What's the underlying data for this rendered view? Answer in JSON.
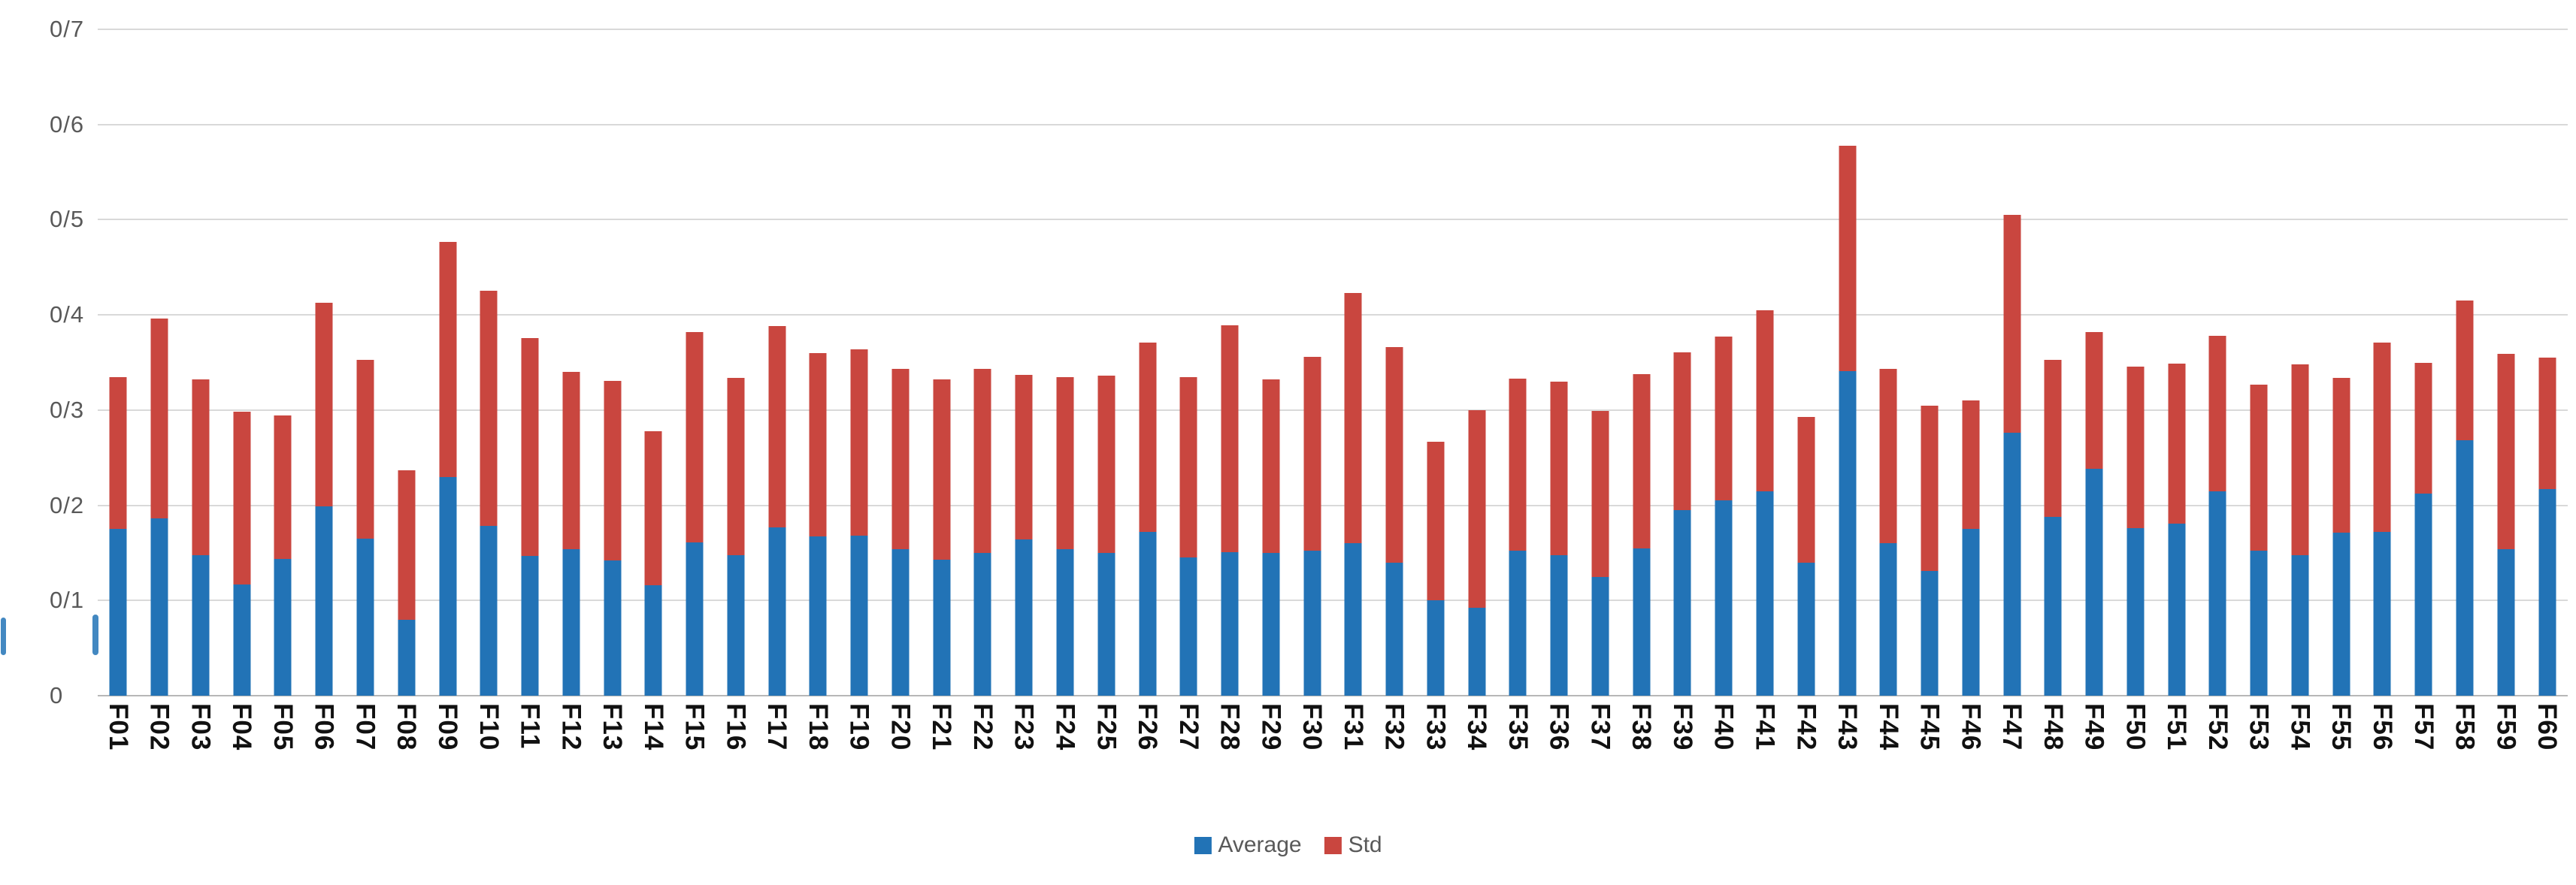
{
  "chart_data": {
    "type": "bar",
    "stacked": true,
    "title": "",
    "xlabel": "",
    "ylabel": "",
    "ylim": [
      0,
      0.7
    ],
    "grid": true,
    "legend_position": "bottom-center",
    "ytick_labels_top_to_bottom": [
      "0/7",
      "0/6",
      "0/5",
      "0/4",
      "0/3",
      "0/2",
      "0/1",
      "0"
    ],
    "ytick_values": [
      0.7,
      0.6,
      0.5,
      0.4,
      0.3,
      0.2,
      0.1,
      0
    ],
    "categories": [
      "F01",
      "F02",
      "F03",
      "F04",
      "F05",
      "F06",
      "F07",
      "F08",
      "F09",
      "F10",
      "F11",
      "F12",
      "F13",
      "F14",
      "F15",
      "F16",
      "F17",
      "F18",
      "F19",
      "F20",
      "F21",
      "F22",
      "F23",
      "F24",
      "F25",
      "F26",
      "F27",
      "F28",
      "F29",
      "F30",
      "F31",
      "F32",
      "F33",
      "F34",
      "F35",
      "F36",
      "F37",
      "F38",
      "F39",
      "F40",
      "F41",
      "F42",
      "F43",
      "F44",
      "F45",
      "F46",
      "F47",
      "F48",
      "F49",
      "F50",
      "F51",
      "F52",
      "F53",
      "F54",
      "F55",
      "F56",
      "F57",
      "F58",
      "F59",
      "F60"
    ],
    "series": [
      {
        "name": "Average",
        "color": "#2273b6",
        "values": [
          0.175,
          0.186,
          0.148,
          0.117,
          0.144,
          0.199,
          0.165,
          0.08,
          0.23,
          0.178,
          0.147,
          0.154,
          0.142,
          0.116,
          0.161,
          0.148,
          0.177,
          0.167,
          0.168,
          0.154,
          0.143,
          0.15,
          0.164,
          0.154,
          0.15,
          0.172,
          0.145,
          0.151,
          0.15,
          0.152,
          0.16,
          0.14,
          0.1,
          0.092,
          0.152,
          0.148,
          0.125,
          0.155,
          0.195,
          0.205,
          0.215,
          0.14,
          0.341,
          0.16,
          0.131,
          0.175,
          0.276,
          0.188,
          0.238,
          0.176,
          0.181,
          0.215,
          0.152,
          0.148,
          0.171,
          0.172,
          0.212,
          0.268,
          0.154,
          0.217
        ]
      },
      {
        "name": "Std",
        "color": "#c9463f",
        "values": [
          0.16,
          0.21,
          0.184,
          0.181,
          0.15,
          0.214,
          0.188,
          0.157,
          0.247,
          0.247,
          0.229,
          0.186,
          0.189,
          0.162,
          0.221,
          0.186,
          0.211,
          0.193,
          0.196,
          0.189,
          0.189,
          0.193,
          0.173,
          0.181,
          0.186,
          0.199,
          0.19,
          0.238,
          0.182,
          0.204,
          0.263,
          0.226,
          0.167,
          0.208,
          0.181,
          0.182,
          0.174,
          0.183,
          0.166,
          0.172,
          0.19,
          0.153,
          0.237,
          0.183,
          0.174,
          0.135,
          0.229,
          0.165,
          0.144,
          0.17,
          0.168,
          0.163,
          0.175,
          0.2,
          0.163,
          0.199,
          0.138,
          0.147,
          0.205,
          0.138
        ]
      }
    ],
    "colors": {
      "gridline": "#d9d9d9",
      "baseline": "#b7b7b7",
      "ytick_text": "#595959",
      "xtick_text": "#111111",
      "legend_text": "#595959",
      "background": "#ffffff"
    }
  }
}
